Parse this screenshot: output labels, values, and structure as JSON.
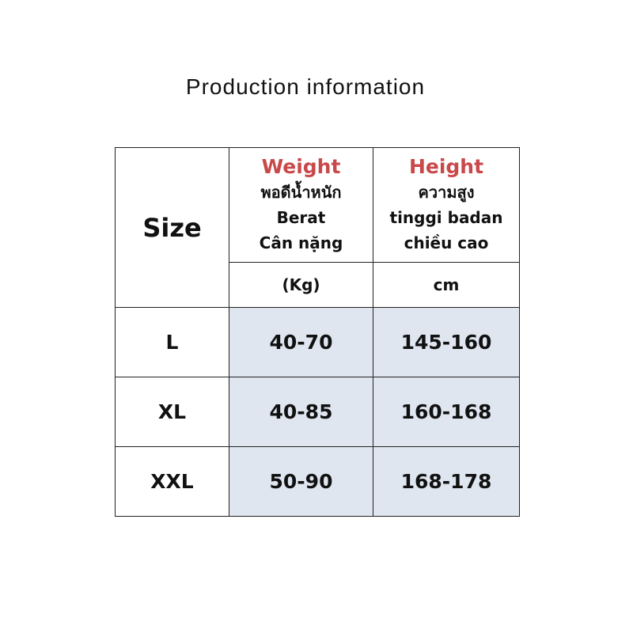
{
  "title": "Production information",
  "header": {
    "size": "Size",
    "weight": {
      "en": "Weight",
      "th": "พอดีน้ำหนัก",
      "id": "Berat",
      "vi": "Cân nặng",
      "unit": "(Kg)"
    },
    "height": {
      "en": "Height",
      "th": "ความสูง",
      "id": "tinggi badan",
      "vi": "chiều cao",
      "unit": "cm"
    }
  },
  "rows": [
    {
      "size": "L",
      "weight": "40-70",
      "height": "145-160"
    },
    {
      "size": "XL",
      "weight": "40-85",
      "height": "160-168"
    },
    {
      "size": "XXL",
      "weight": "50-90",
      "height": "168-178"
    }
  ],
  "colors": {
    "accent": "#c9484a",
    "cell": "#dfe6f0"
  }
}
